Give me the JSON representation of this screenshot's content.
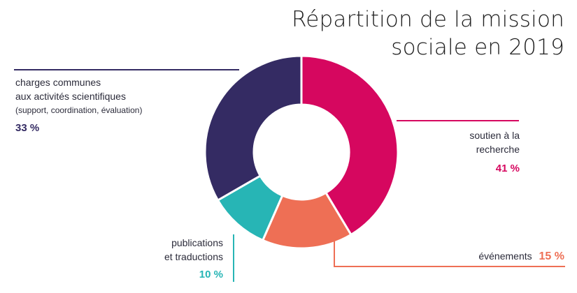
{
  "title": {
    "line1": "Répartition de la mission",
    "line2": "sociale en 2019"
  },
  "chart_data": {
    "type": "pie",
    "title": "Répartition de la mission sociale en 2019",
    "slices": [
      {
        "key": "soutien",
        "label_lines": [
          "soutien à la",
          "recherche"
        ],
        "value": 41,
        "pct_label": "41 %",
        "color": "#d6075f"
      },
      {
        "key": "evenements",
        "label_lines": [
          "événements"
        ],
        "value": 15,
        "pct_label": "15 %",
        "color": "#ee6f55"
      },
      {
        "key": "publications",
        "label_lines": [
          "publications",
          "et traductions"
        ],
        "value": 10,
        "pct_label": "10 %",
        "color": "#27b5b5"
      },
      {
        "key": "charges",
        "label_lines": [
          "charges communes",
          "aux activités scientifiques"
        ],
        "note": "(support, coordination, évaluation)",
        "value": 33,
        "pct_label": "33 %",
        "color": "#342b63"
      }
    ],
    "donut": true
  }
}
